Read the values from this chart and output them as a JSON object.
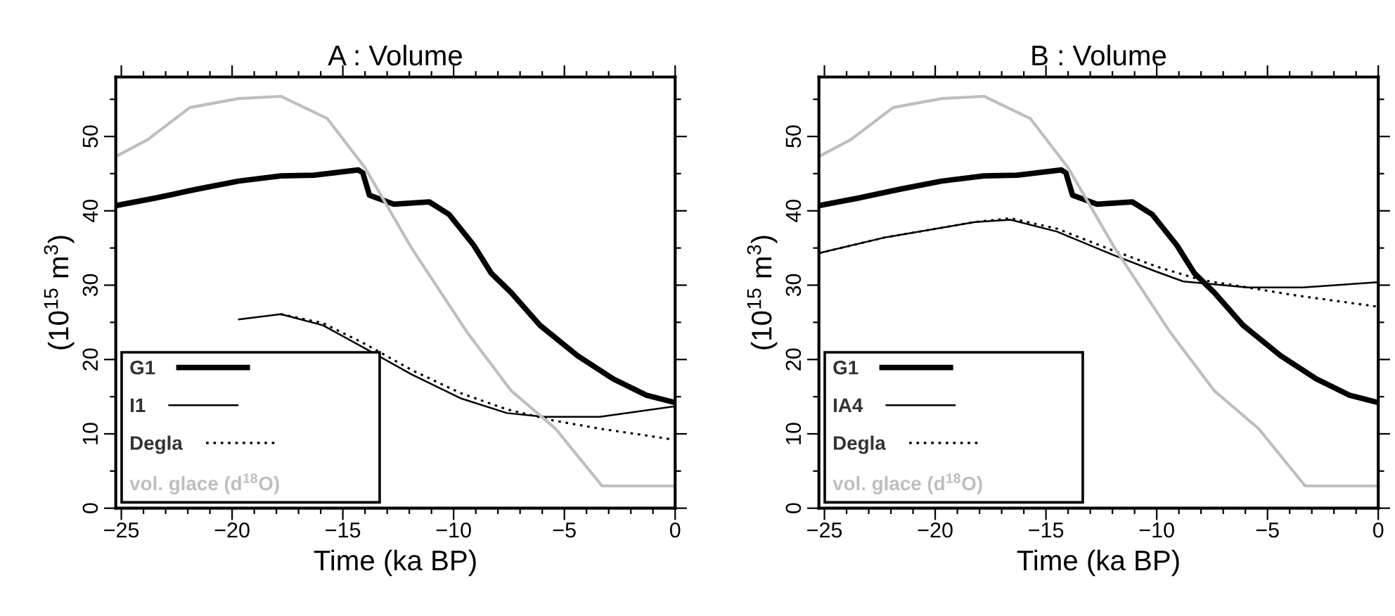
{
  "chart_data": [
    {
      "type": "line",
      "title": "A : Volume",
      "xlabel": "Time (ka BP)",
      "ylabel": "(10$^{15}$ m$^{3}$)",
      "xlim": [
        -25.25,
        0
      ],
      "ylim": [
        0,
        58
      ],
      "xticks": [
        -25,
        {
          "value": -24,
          "label": null
        },
        {
          "value": -23,
          "label": null
        },
        {
          "value": -22,
          "label": null
        },
        {
          "value": -21,
          "label": null
        },
        -20,
        {
          "value": -19,
          "label": null
        },
        {
          "value": -18,
          "label": null
        },
        {
          "value": -17,
          "label": null
        },
        {
          "value": -16,
          "label": null
        },
        -15,
        {
          "value": -14,
          "label": null
        },
        {
          "value": -13,
          "label": null
        },
        {
          "value": -12,
          "label": null
        },
        {
          "value": -11,
          "label": null
        },
        -10,
        {
          "value": -9,
          "label": null
        },
        {
          "value": -8,
          "label": null
        },
        {
          "value": -7,
          "label": null
        },
        {
          "value": -6,
          "label": null
        },
        -5,
        {
          "value": -4,
          "label": null
        },
        {
          "value": -3,
          "label": null
        },
        {
          "value": -2,
          "label": null
        },
        {
          "value": -1,
          "label": null
        },
        0
      ],
      "yticks": [
        0,
        {
          "value": 5,
          "label": null
        },
        10,
        {
          "value": 15,
          "label": null
        },
        20,
        {
          "value": 25,
          "label": null
        },
        30,
        {
          "value": 35,
          "label": null
        },
        40,
        {
          "value": 45,
          "label": null
        },
        50,
        {
          "value": 55,
          "label": null
        }
      ],
      "grid": false,
      "legend": "bottom left",
      "series": [
        {
          "name": "G1",
          "color": "#000000",
          "line_style": "solid",
          "x": [
            -25.25,
            -23.5,
            -21.6,
            -19.7,
            -17.8,
            -16.3,
            -14.3,
            -14.1,
            -13.8,
            -12.7,
            -11.1,
            -10.2,
            -9.1,
            -8.3,
            -7.4,
            -6.1,
            -4.4,
            -2.8,
            -1.3,
            0
          ],
          "values": [
            40.7,
            41.7,
            42.9,
            44,
            44.7,
            44.8,
            45.5,
            45.1,
            42.1,
            40.9,
            41.2,
            39.5,
            35.4,
            31.6,
            29,
            24.6,
            20.5,
            17.4,
            15.2,
            14.2
          ]
        },
        {
          "name": "I1",
          "color": "#000000",
          "line_style": "solid",
          "x": [
            -19.7,
            -17.8,
            -15.9,
            -14,
            -11.9,
            -9.7,
            -7.6,
            -5.9,
            -3.4,
            0
          ],
          "values": [
            25.4,
            26.1,
            24.6,
            21.5,
            18,
            14.8,
            12.8,
            12.3,
            12.3,
            13.7
          ]
        },
        {
          "name": "Degla",
          "color": "#000000",
          "line_style": "dotted",
          "x": [
            -17.8,
            -15.9,
            -14,
            -11.9,
            -9.7,
            -7.6,
            -5.5,
            -3.4,
            0
          ],
          "values": [
            26.1,
            24.9,
            22.1,
            18.6,
            15.5,
            13.3,
            11.8,
            10.7,
            9.2
          ]
        },
        {
          "name": "vol. glace (d$^{18}$O)",
          "color": "#bebebe",
          "line_style": "solid",
          "x": [
            -25.25,
            -23.8,
            -21.9,
            -19.7,
            -17.8,
            -15.7,
            -14,
            -11.9,
            -9.4,
            -7.4,
            -5.4,
            -3.3,
            0
          ],
          "values": [
            47.3,
            49.6,
            53.9,
            55.1,
            55.4,
            52.4,
            45.8,
            35,
            23.7,
            15.8,
            10.7,
            3,
            3
          ]
        }
      ]
    },
    {
      "type": "line",
      "title": "B : Volume",
      "xlabel": "Time (ka BP)",
      "ylabel": "(10$^{15}$ m$^{3}$)",
      "xlim": [
        -25.25,
        0
      ],
      "ylim": [
        0,
        58
      ],
      "xticks": [
        -25,
        {
          "value": -24,
          "label": null
        },
        {
          "value": -23,
          "label": null
        },
        {
          "value": -22,
          "label": null
        },
        {
          "value": -21,
          "label": null
        },
        -20,
        {
          "value": -19,
          "label": null
        },
        {
          "value": -18,
          "label": null
        },
        {
          "value": -17,
          "label": null
        },
        {
          "value": -16,
          "label": null
        },
        -15,
        {
          "value": -14,
          "label": null
        },
        {
          "value": -13,
          "label": null
        },
        {
          "value": -12,
          "label": null
        },
        {
          "value": -11,
          "label": null
        },
        -10,
        {
          "value": -9,
          "label": null
        },
        {
          "value": -8,
          "label": null
        },
        {
          "value": -7,
          "label": null
        },
        {
          "value": -6,
          "label": null
        },
        -5,
        {
          "value": -4,
          "label": null
        },
        {
          "value": -3,
          "label": null
        },
        {
          "value": -2,
          "label": null
        },
        {
          "value": -1,
          "label": null
        },
        0
      ],
      "yticks": [
        0,
        {
          "value": 5,
          "label": null
        },
        10,
        {
          "value": 15,
          "label": null
        },
        20,
        {
          "value": 25,
          "label": null
        },
        30,
        {
          "value": 35,
          "label": null
        },
        40,
        {
          "value": 45,
          "label": null
        },
        50,
        {
          "value": 55,
          "label": null
        }
      ],
      "grid": false,
      "legend": "bottom left",
      "series": [
        {
          "name": "G1",
          "color": "#000000",
          "line_style": "solid",
          "x": [
            -25.25,
            -23.5,
            -21.6,
            -19.7,
            -17.8,
            -16.3,
            -14.3,
            -14.1,
            -13.8,
            -12.7,
            -11.1,
            -10.2,
            -9.1,
            -8.3,
            -7.4,
            -6.1,
            -4.4,
            -2.8,
            -1.3,
            0
          ],
          "values": [
            40.7,
            41.7,
            42.9,
            44,
            44.7,
            44.8,
            45.5,
            45.1,
            42.1,
            40.9,
            41.2,
            39.5,
            35.4,
            31.6,
            29,
            24.6,
            20.5,
            17.4,
            15.2,
            14.2
          ]
        },
        {
          "name": "IA4",
          "color": "#000000",
          "line_style": "solid",
          "x": [
            -25.25,
            -22.3,
            -18.2,
            -16.6,
            -14.5,
            -12,
            -10,
            -8.8,
            -5.9,
            -3.4,
            0
          ],
          "values": [
            34.3,
            36.4,
            38.5,
            38.8,
            37.2,
            34.1,
            31.8,
            30.5,
            29.7,
            29.7,
            30.4
          ]
        },
        {
          "name": "Degla",
          "color": "#000000",
          "line_style": "dotted",
          "x": [
            -25.25,
            -22.3,
            -18.2,
            -16.6,
            -14.5,
            -12,
            -10,
            -8,
            -5.9,
            -3.9,
            0
          ],
          "values": [
            34.3,
            36.4,
            38.5,
            39,
            37.6,
            34.7,
            32.5,
            30.7,
            29.7,
            28.7,
            27.1
          ]
        },
        {
          "name": "vol. glace (d$^{18}$O)",
          "color": "#bebebe",
          "line_style": "solid",
          "x": [
            -25.25,
            -23.8,
            -21.9,
            -19.7,
            -17.8,
            -15.7,
            -14,
            -11.9,
            -9.4,
            -7.4,
            -5.4,
            -3.3,
            0
          ],
          "values": [
            47.3,
            49.6,
            53.9,
            55.1,
            55.4,
            52.4,
            45.8,
            35,
            23.7,
            15.8,
            10.7,
            3,
            3
          ]
        }
      ]
    }
  ]
}
